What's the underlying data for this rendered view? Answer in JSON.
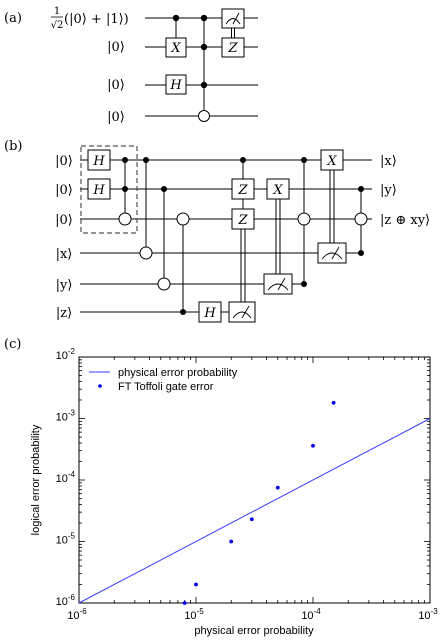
{
  "panels": {
    "a_label": "(a)",
    "b_label": "(b)",
    "c_label": "(c)"
  },
  "circuit_a": {
    "inputs": [
      "1/√2(|0⟩ + |1⟩)",
      "|0⟩",
      "|0⟩",
      "|0⟩"
    ],
    "input_frac_num": "1",
    "input_frac_den": "√2",
    "input_rest": "(|0⟩ + |1⟩)",
    "ket0": "|0⟩",
    "gates": {
      "x": "X",
      "h": "H",
      "z": "Z"
    }
  },
  "circuit_b": {
    "inputs": [
      "|0⟩",
      "|0⟩",
      "|0⟩",
      "|x⟩",
      "|y⟩",
      "|z⟩"
    ],
    "outputs": [
      "|x⟩",
      "|y⟩",
      "|z ⊕ xy⟩"
    ],
    "gates": {
      "h": "H",
      "z": "Z",
      "x": "X"
    }
  },
  "chart_data": {
    "type": "scatter",
    "xlabel": "physical error probability",
    "ylabel": "logical error probability",
    "xscale": "log",
    "yscale": "log",
    "xlim": [
      1e-06,
      0.001
    ],
    "ylim": [
      1e-06,
      0.01
    ],
    "x_ticks": [
      {
        "value": 1e-06,
        "base": "10",
        "exp": "-6"
      },
      {
        "value": 1e-05,
        "base": "10",
        "exp": "-5"
      },
      {
        "value": 0.0001,
        "base": "10",
        "exp": "-4"
      },
      {
        "value": 0.001,
        "base": "10",
        "exp": "-3"
      }
    ],
    "y_ticks": [
      {
        "value": 1e-06,
        "base": "10",
        "exp": "-6"
      },
      {
        "value": 1e-05,
        "base": "10",
        "exp": "-5"
      },
      {
        "value": 0.0001,
        "base": "10",
        "exp": "-4"
      },
      {
        "value": 0.001,
        "base": "10",
        "exp": "-3"
      },
      {
        "value": 0.01,
        "base": "10",
        "exp": "-2"
      }
    ],
    "grid": false,
    "legend_position": "top-left",
    "series": [
      {
        "name": "physical error probability",
        "kind": "line",
        "color": "#3a3aff",
        "x": [
          1e-06,
          0.001
        ],
        "y": [
          1e-06,
          0.001
        ]
      },
      {
        "name": "FT Toffoli gate error",
        "kind": "points",
        "color": "#0000ee",
        "x": [
          8e-06,
          1e-05,
          2e-05,
          3e-05,
          5e-05,
          0.0001,
          0.00015
        ],
        "y": [
          1e-06,
          2e-06,
          1e-05,
          2.3e-05,
          7.5e-05,
          0.00036,
          0.0018
        ]
      }
    ]
  }
}
